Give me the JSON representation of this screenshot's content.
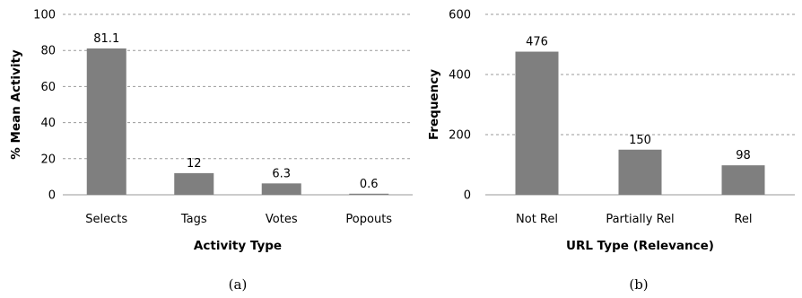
{
  "chart_data": [
    {
      "type": "bar",
      "categories": [
        "Selects",
        "Tags",
        "Votes",
        "Popouts"
      ],
      "values": [
        81.1,
        12,
        6.3,
        0.6
      ],
      "data_labels": [
        "81.1",
        "12",
        "6.3",
        "0.6"
      ],
      "xlabel": "Activity Type",
      "ylabel": "% Mean Activity",
      "ylim": [
        0,
        100
      ],
      "yticks": [
        0,
        20,
        40,
        60,
        80,
        100
      ],
      "grid": true,
      "bar_color": "#7f7f7f",
      "caption": "(a)"
    },
    {
      "type": "bar",
      "categories": [
        "Not Rel",
        "Partially Rel",
        "Rel"
      ],
      "values": [
        476,
        150,
        98
      ],
      "data_labels": [
        "476",
        "150",
        "98"
      ],
      "xlabel": "URL Type (Relevance)",
      "ylabel": "Frequency",
      "ylim": [
        0,
        600
      ],
      "yticks": [
        0,
        200,
        400,
        600
      ],
      "grid": true,
      "bar_color": "#7f7f7f",
      "caption": "(b)"
    }
  ]
}
